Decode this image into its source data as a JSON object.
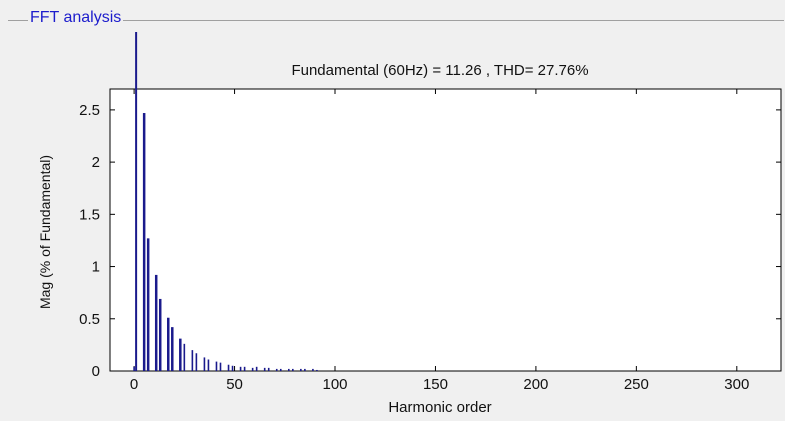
{
  "panel": {
    "title": "FFT analysis"
  },
  "chart_data": {
    "type": "bar",
    "title": "Fundamental (60Hz) = 11.26 , THD= 27.76%",
    "xlabel": "Harmonic order",
    "ylabel": "Mag (% of Fundamental)",
    "xlim": [
      -12,
      322
    ],
    "ylim": [
      0,
      2.7
    ],
    "xticks": [
      0,
      50,
      100,
      150,
      200,
      250,
      300
    ],
    "yticks": [
      0,
      0.5,
      1,
      1.5,
      2,
      2.5
    ],
    "fundamental": {
      "harmonic": 1,
      "value": 100,
      "note": "clipped above axis"
    },
    "bar_color": "#1a1a8c",
    "harmonics": [
      {
        "x": 0,
        "y": 0.04
      },
      {
        "x": 5,
        "y": 2.47
      },
      {
        "x": 7,
        "y": 1.27
      },
      {
        "x": 11,
        "y": 0.92
      },
      {
        "x": 13,
        "y": 0.69
      },
      {
        "x": 17,
        "y": 0.51
      },
      {
        "x": 19,
        "y": 0.42
      },
      {
        "x": 23,
        "y": 0.31
      },
      {
        "x": 25,
        "y": 0.26
      },
      {
        "x": 29,
        "y": 0.2
      },
      {
        "x": 31,
        "y": 0.17
      },
      {
        "x": 35,
        "y": 0.13
      },
      {
        "x": 37,
        "y": 0.11
      },
      {
        "x": 41,
        "y": 0.09
      },
      {
        "x": 43,
        "y": 0.08
      },
      {
        "x": 47,
        "y": 0.06
      },
      {
        "x": 49,
        "y": 0.05
      },
      {
        "x": 53,
        "y": 0.04
      },
      {
        "x": 55,
        "y": 0.04
      },
      {
        "x": 59,
        "y": 0.03
      },
      {
        "x": 61,
        "y": 0.04
      },
      {
        "x": 65,
        "y": 0.03
      },
      {
        "x": 67,
        "y": 0.03
      },
      {
        "x": 71,
        "y": 0.02
      },
      {
        "x": 73,
        "y": 0.02
      },
      {
        "x": 77,
        "y": 0.02
      },
      {
        "x": 79,
        "y": 0.02
      },
      {
        "x": 83,
        "y": 0.02
      },
      {
        "x": 85,
        "y": 0.02
      },
      {
        "x": 89,
        "y": 0.02
      },
      {
        "x": 91,
        "y": 0.01
      }
    ]
  }
}
